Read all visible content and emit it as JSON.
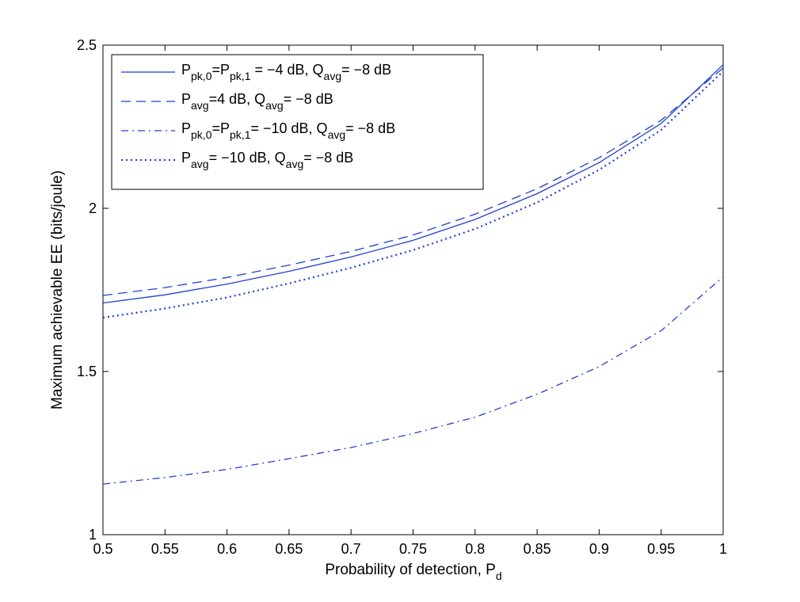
{
  "chart_data": {
    "type": "line",
    "title": "",
    "xlabel": "Probability of detection, P_d",
    "xlabel_main": "Probability of detection, P",
    "xlabel_sub": "d",
    "ylabel": "Maximum achievable EE (bits/joule)",
    "xlim": [
      0.5,
      1
    ],
    "ylim": [
      1,
      2.5
    ],
    "x_ticks": [
      "0.5",
      "0.55",
      "0.6",
      "0.65",
      "0.7",
      "0.75",
      "0.8",
      "0.85",
      "0.9",
      "0.95",
      "1"
    ],
    "y_ticks": [
      "1",
      "1.5",
      "2",
      "2.5"
    ],
    "grid": false,
    "legend_position": "top-left",
    "x": [
      0.5,
      0.55,
      0.6,
      0.65,
      0.7,
      0.75,
      0.8,
      0.85,
      0.9,
      0.95,
      1.0
    ],
    "series": [
      {
        "name": "P_pk,0=P_pk,1= −4 dB, Q_avg= −8 dB",
        "legend_parts": [
          [
            "P",
            "pk,0"
          ],
          [
            "=P",
            "pk,1"
          ],
          [
            " = −4 dB, Q",
            "avg"
          ],
          [
            "= −8 dB",
            ""
          ]
        ],
        "style": "solid",
        "color": "#1f3fd6",
        "values": [
          1.71,
          1.735,
          1.768,
          1.807,
          1.851,
          1.902,
          1.966,
          2.045,
          2.14,
          2.26,
          2.44
        ]
      },
      {
        "name": "P_avg=4 dB, Q_avg= −8 dB",
        "legend_parts": [
          [
            "P",
            "avg"
          ],
          [
            "=4 dB, Q",
            "avg"
          ],
          [
            "= −8 dB",
            ""
          ]
        ],
        "style": "dashed",
        "color": "#1f3fd6",
        "values": [
          1.733,
          1.757,
          1.788,
          1.826,
          1.868,
          1.918,
          1.982,
          2.06,
          2.155,
          2.27,
          2.43
        ]
      },
      {
        "name": "P_pk,0=P_pk,1= −10 dB, Q_avg= −8 dB",
        "legend_parts": [
          [
            "P",
            "pk,0"
          ],
          [
            "=P",
            "pk,1"
          ],
          [
            "= −10 dB, Q",
            "avg"
          ],
          [
            "= −8 dB",
            ""
          ]
        ],
        "style": "dashdot",
        "color": "#1f3fd6",
        "values": [
          1.155,
          1.175,
          1.2,
          1.233,
          1.267,
          1.31,
          1.36,
          1.43,
          1.515,
          1.625,
          1.79
        ]
      },
      {
        "name": "P_avg= −10 dB, Q_avg= −8 dB",
        "legend_parts": [
          [
            "P",
            "avg"
          ],
          [
            "= −10 dB, Q",
            "avg"
          ],
          [
            "= −8 dB",
            ""
          ]
        ],
        "style": "dotted",
        "color": "#1f3fd6",
        "values": [
          1.665,
          1.693,
          1.727,
          1.77,
          1.818,
          1.872,
          1.937,
          2.018,
          2.118,
          2.24,
          2.42
        ]
      }
    ]
  }
}
